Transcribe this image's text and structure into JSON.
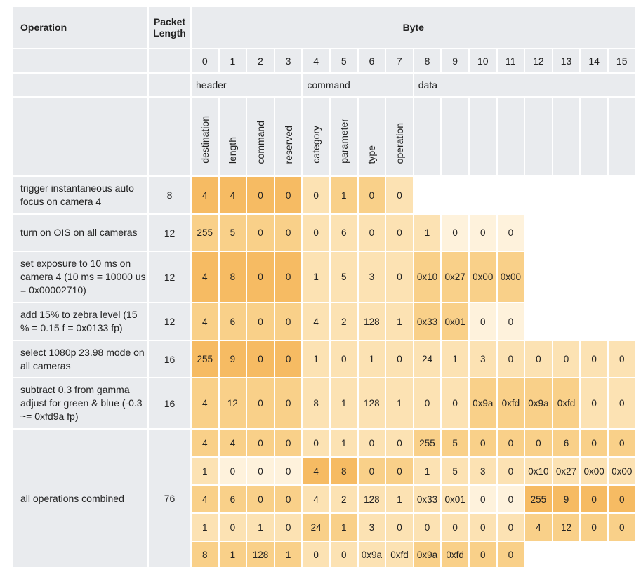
{
  "headers": {
    "operation": "Operation",
    "packet_length": "Packet Length",
    "byte": "Byte"
  },
  "byte_indices": [
    "0",
    "1",
    "2",
    "3",
    "4",
    "5",
    "6",
    "7",
    "8",
    "9",
    "10",
    "11",
    "12",
    "13",
    "14",
    "15"
  ],
  "groups": [
    {
      "label": "header",
      "span": 4
    },
    {
      "label": "command",
      "span": 4
    },
    {
      "label": "data",
      "span": 8
    }
  ],
  "field_labels": [
    "destination",
    "length",
    "command",
    "reserved",
    "category",
    "parameter",
    "type",
    "operation"
  ],
  "shade_colors": [
    "#ffffff",
    "#fef2dc",
    "#fce2b3",
    "#f9d089",
    "#f6bb63"
  ],
  "rows": [
    {
      "operation": "trigger instantaneous auto focus on camera 4",
      "length": "8",
      "sub": [
        {
          "values": [
            "4",
            "4",
            "0",
            "0",
            "0",
            "1",
            "0",
            "0"
          ],
          "shades": [
            4,
            4,
            4,
            4,
            2,
            3,
            3,
            2
          ]
        }
      ]
    },
    {
      "operation": "turn on OIS on all cameras",
      "length": "12",
      "sub": [
        {
          "values": [
            "255",
            "5",
            "0",
            "0",
            "0",
            "6",
            "0",
            "0",
            "1",
            "0",
            "0",
            "0"
          ],
          "shades": [
            3,
            3,
            3,
            3,
            2,
            2,
            2,
            2,
            2,
            1,
            1,
            1
          ]
        }
      ]
    },
    {
      "operation": "set exposure to 10 ms on camera 4 (10 ms = 10000 us = 0x00002710)",
      "length": "12",
      "sub": [
        {
          "values": [
            "4",
            "8",
            "0",
            "0",
            "1",
            "5",
            "3",
            "0",
            "0x10",
            "0x27",
            "0x00",
            "0x00"
          ],
          "shades": [
            4,
            4,
            4,
            4,
            2,
            2,
            2,
            2,
            3,
            3,
            3,
            3
          ]
        }
      ]
    },
    {
      "operation": "add 15% to zebra level (15 % = 0.15 f = 0x0133 fp)",
      "length": "12",
      "sub": [
        {
          "values": [
            "4",
            "6",
            "0",
            "0",
            "4",
            "2",
            "128",
            "1",
            "0x33",
            "0x01",
            "0",
            "0"
          ],
          "shades": [
            3,
            3,
            3,
            3,
            2,
            2,
            2,
            2,
            3,
            3,
            1,
            1
          ]
        }
      ]
    },
    {
      "operation": "select 1080p 23.98 mode on all cameras",
      "length": "16",
      "sub": [
        {
          "values": [
            "255",
            "9",
            "0",
            "0",
            "1",
            "0",
            "1",
            "0",
            "24",
            "1",
            "3",
            "0",
            "0",
            "0",
            "0",
            "0"
          ],
          "shades": [
            4,
            4,
            4,
            4,
            2,
            2,
            2,
            2,
            2,
            2,
            2,
            2,
            2,
            2,
            2,
            2
          ]
        }
      ]
    },
    {
      "operation": "subtract 0.3 from gamma adjust for green & blue (-0.3 ~= 0xfd9a fp)",
      "length": "16",
      "sub": [
        {
          "values": [
            "4",
            "12",
            "0",
            "0",
            "8",
            "1",
            "128",
            "1",
            "0",
            "0",
            "0x9a",
            "0xfd",
            "0x9a",
            "0xfd",
            "0",
            "0"
          ],
          "shades": [
            3,
            3,
            3,
            3,
            2,
            2,
            2,
            2,
            2,
            2,
            3,
            3,
            3,
            3,
            2,
            2
          ]
        }
      ]
    },
    {
      "operation": "all operations combined",
      "length": "76",
      "sub": [
        {
          "values": [
            "4",
            "4",
            "0",
            "0",
            "0",
            "1",
            "0",
            "0",
            "255",
            "5",
            "0",
            "0",
            "0",
            "6",
            "0",
            "0"
          ],
          "shades": [
            3,
            3,
            3,
            3,
            2,
            2,
            2,
            2,
            3,
            3,
            3,
            3,
            3,
            3,
            3,
            3
          ]
        },
        {
          "values": [
            "1",
            "0",
            "0",
            "0",
            "4",
            "8",
            "0",
            "0",
            "1",
            "5",
            "3",
            "0",
            "0x10",
            "0x27",
            "0x00",
            "0x00"
          ],
          "shades": [
            2,
            1,
            1,
            1,
            4,
            4,
            3,
            3,
            2,
            2,
            2,
            2,
            2,
            2,
            2,
            2
          ]
        },
        {
          "values": [
            "4",
            "6",
            "0",
            "0",
            "4",
            "2",
            "128",
            "1",
            "0x33",
            "0x01",
            "0",
            "0",
            "255",
            "9",
            "0",
            "0"
          ],
          "shades": [
            3,
            3,
            3,
            3,
            2,
            2,
            2,
            2,
            2,
            2,
            1,
            1,
            4,
            4,
            4,
            4
          ]
        },
        {
          "values": [
            "1",
            "0",
            "1",
            "0",
            "24",
            "1",
            "3",
            "0",
            "0",
            "0",
            "0",
            "0",
            "4",
            "12",
            "0",
            "0"
          ],
          "shades": [
            2,
            2,
            2,
            2,
            3,
            3,
            2,
            2,
            2,
            2,
            2,
            2,
            3,
            3,
            3,
            3
          ]
        },
        {
          "values": [
            "8",
            "1",
            "128",
            "1",
            "0",
            "0",
            "0x9a",
            "0xfd",
            "0x9a",
            "0xfd",
            "0",
            "0"
          ],
          "shades": [
            3,
            3,
            3,
            3,
            2,
            2,
            2,
            2,
            3,
            3,
            3,
            3
          ]
        }
      ]
    }
  ]
}
